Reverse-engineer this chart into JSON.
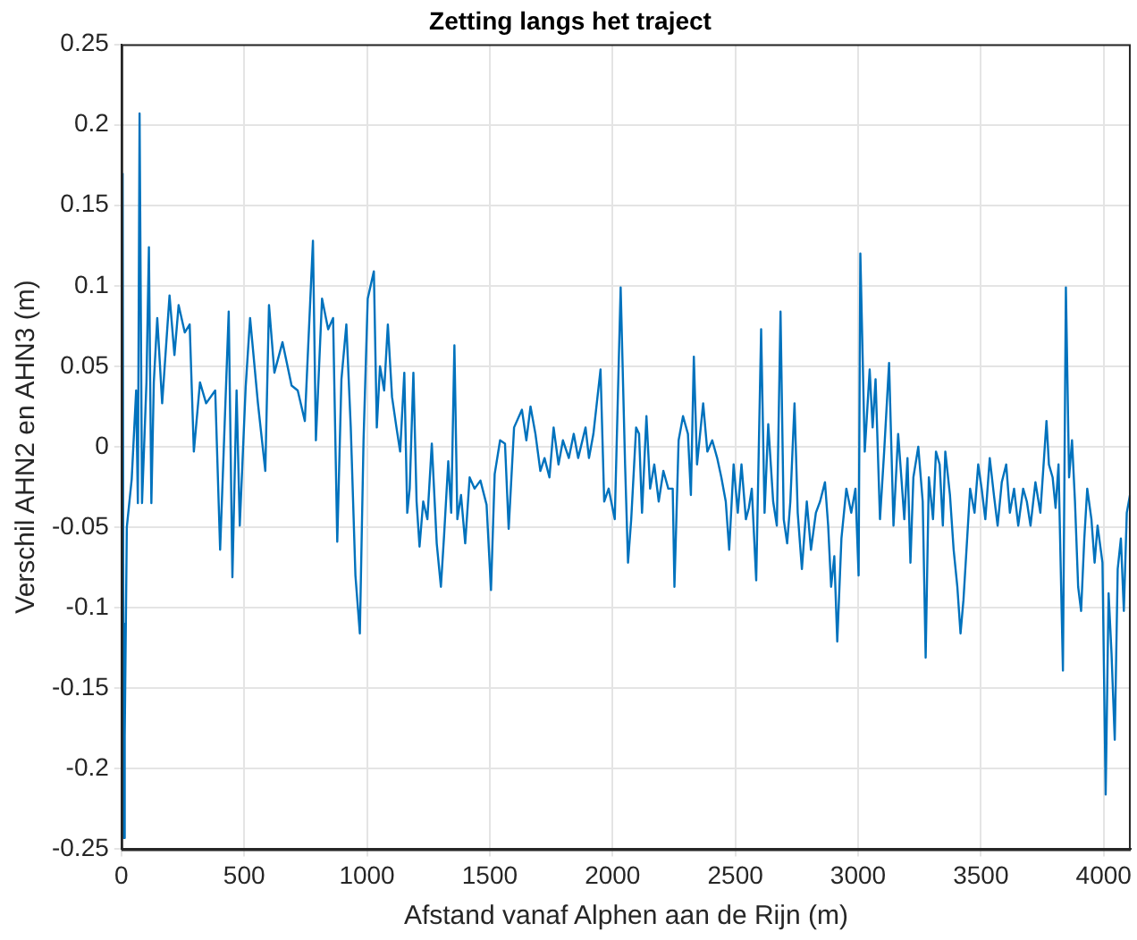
{
  "chart_data": {
    "type": "line",
    "title": "Zetting langs het traject",
    "xlabel": "Afstand vanaf Alphen aan de Rijn (m)",
    "ylabel": "Verschil AHN2 en AHN3 (m)",
    "x": [
      5,
      9,
      12,
      15,
      22,
      42,
      60,
      67,
      74,
      84,
      102,
      112,
      122,
      132,
      146,
      166,
      196,
      216,
      233,
      258,
      278,
      295,
      320,
      345,
      382,
      402,
      437,
      452,
      469,
      482,
      506,
      524,
      556,
      586,
      601,
      623,
      656,
      693,
      718,
      747,
      780,
      792,
      817,
      842,
      862,
      879,
      896,
      916,
      934,
      953,
      971,
      986,
      1003,
      1028,
      1040,
      1053,
      1070,
      1085,
      1102,
      1120,
      1135,
      1152,
      1164,
      1174,
      1189,
      1202,
      1214,
      1229,
      1246,
      1264,
      1284,
      1301,
      1314,
      1331,
      1343,
      1356,
      1368,
      1383,
      1400,
      1418,
      1438,
      1462,
      1487,
      1505,
      1520,
      1542,
      1562,
      1577,
      1599,
      1631,
      1649,
      1666,
      1686,
      1706,
      1723,
      1743,
      1760,
      1780,
      1798,
      1822,
      1842,
      1860,
      1890,
      1904,
      1922,
      1951,
      1966,
      1984,
      2009,
      2033,
      2051,
      2063,
      2076,
      2096,
      2108,
      2120,
      2138,
      2153,
      2170,
      2188,
      2207,
      2227,
      2245,
      2252,
      2269,
      2287,
      2307,
      2319,
      2331,
      2344,
      2369,
      2386,
      2406,
      2426,
      2443,
      2461,
      2475,
      2493,
      2510,
      2525,
      2543,
      2555,
      2567,
      2585,
      2605,
      2619,
      2634,
      2654,
      2669,
      2684,
      2697,
      2711,
      2724,
      2741,
      2754,
      2771,
      2791,
      2808,
      2828,
      2845,
      2865,
      2878,
      2890,
      2903,
      2915,
      2932,
      2952,
      2972,
      2989,
      3002,
      3009,
      3027,
      3047,
      3059,
      3071,
      3089,
      3106,
      3126,
      3144,
      3163,
      3176,
      3188,
      3201,
      3213,
      3225,
      3245,
      3263,
      3275,
      3288,
      3305,
      3317,
      3332,
      3345,
      3355,
      3374,
      3389,
      3404,
      3417,
      3429,
      3444,
      3456,
      3474,
      3489,
      3503,
      3518,
      3536,
      3553,
      3568,
      3585,
      3603,
      3618,
      3635,
      3652,
      3672,
      3687,
      3702,
      3722,
      3742,
      3757,
      3767,
      3777,
      3792,
      3804,
      3816,
      3834,
      3846,
      3859,
      3871,
      3883,
      3896,
      3908,
      3921,
      3933,
      3950,
      3963,
      3975,
      3995,
      4008,
      4020,
      4032,
      4045,
      4057,
      4070,
      4082,
      4094,
      4107
    ],
    "series": [
      {
        "color": "#0072bd",
        "values": [
          0.17,
          -0.243,
          -0.11,
          -0.18,
          -0.05,
          -0.02,
          0.035,
          -0.035,
          0.207,
          -0.035,
          0.04,
          0.124,
          -0.035,
          0.04,
          0.08,
          0.027,
          0.094,
          0.057,
          0.088,
          0.071,
          0.076,
          -0.003,
          0.04,
          0.027,
          0.035,
          -0.064,
          0.084,
          -0.081,
          0.035,
          -0.049,
          0.037,
          0.08,
          0.027,
          -0.015,
          0.088,
          0.046,
          0.065,
          0.038,
          0.035,
          0.016,
          0.128,
          0.004,
          0.092,
          0.073,
          0.08,
          -0.059,
          0.042,
          0.076,
          0.012,
          -0.08,
          -0.116,
          0.004,
          0.092,
          0.109,
          0.012,
          0.05,
          0.035,
          0.076,
          0.031,
          0.012,
          -0.003,
          0.046,
          -0.041,
          -0.026,
          0.046,
          -0.034,
          -0.062,
          -0.034,
          -0.045,
          0.002,
          -0.06,
          -0.087,
          -0.055,
          -0.009,
          -0.041,
          0.063,
          -0.045,
          -0.03,
          -0.06,
          -0.019,
          -0.026,
          -0.021,
          -0.036,
          -0.089,
          -0.017,
          0.004,
          0.002,
          -0.051,
          0.012,
          0.023,
          0.004,
          0.025,
          0.008,
          -0.015,
          -0.007,
          -0.019,
          0.012,
          -0.011,
          0.004,
          -0.007,
          0.008,
          -0.007,
          0.012,
          -0.007,
          0.008,
          0.048,
          -0.034,
          -0.026,
          -0.045,
          0.099,
          -0.011,
          -0.072,
          -0.045,
          0.012,
          0.008,
          -0.041,
          0.019,
          -0.026,
          -0.011,
          -0.034,
          -0.015,
          -0.026,
          -0.026,
          -0.087,
          0.004,
          0.019,
          0.008,
          -0.03,
          0.056,
          -0.011,
          0.027,
          -0.003,
          0.004,
          -0.007,
          -0.019,
          -0.034,
          -0.064,
          -0.011,
          -0.041,
          -0.011,
          -0.045,
          -0.038,
          -0.026,
          -0.083,
          0.073,
          -0.041,
          0.014,
          -0.034,
          -0.049,
          0.084,
          -0.045,
          -0.06,
          -0.034,
          0.027,
          -0.041,
          -0.076,
          -0.034,
          -0.064,
          -0.041,
          -0.034,
          -0.022,
          -0.049,
          -0.087,
          -0.068,
          -0.121,
          -0.057,
          -0.026,
          -0.041,
          -0.026,
          -0.08,
          0.12,
          -0.003,
          0.048,
          0.012,
          0.042,
          -0.045,
          -0.003,
          0.052,
          -0.049,
          0.008,
          -0.019,
          -0.045,
          -0.007,
          -0.072,
          -0.019,
          0,
          -0.034,
          -0.131,
          -0.019,
          -0.045,
          -0.003,
          -0.011,
          -0.049,
          -0.003,
          -0.03,
          -0.064,
          -0.087,
          -0.116,
          -0.095,
          -0.057,
          -0.026,
          -0.041,
          -0.011,
          -0.026,
          -0.045,
          -0.007,
          -0.03,
          -0.049,
          -0.022,
          -0.011,
          -0.041,
          -0.026,
          -0.049,
          -0.026,
          -0.034,
          -0.049,
          -0.022,
          -0.041,
          -0.007,
          0.016,
          -0.011,
          -0.019,
          -0.038,
          -0.011,
          -0.139,
          0.099,
          -0.019,
          0.004,
          -0.034,
          -0.087,
          -0.102,
          -0.057,
          -0.026,
          -0.045,
          -0.072,
          -0.049,
          -0.072,
          -0.216,
          -0.091,
          -0.129,
          -0.182,
          -0.076,
          -0.057,
          -0.102,
          -0.041,
          -0.03
        ]
      }
    ],
    "xlim": [
      0,
      4110
    ],
    "xticks": [
      0,
      500,
      1000,
      1500,
      2000,
      2500,
      3000,
      3500,
      4000
    ],
    "ylim": [
      -0.25,
      0.25
    ],
    "yticks": [
      -0.25,
      -0.2,
      -0.15,
      -0.1,
      -0.05,
      0,
      0.05,
      0.1,
      0.15,
      0.2,
      0.25
    ],
    "grid": true,
    "legend": false,
    "marker": "none",
    "line_style": "solid"
  }
}
